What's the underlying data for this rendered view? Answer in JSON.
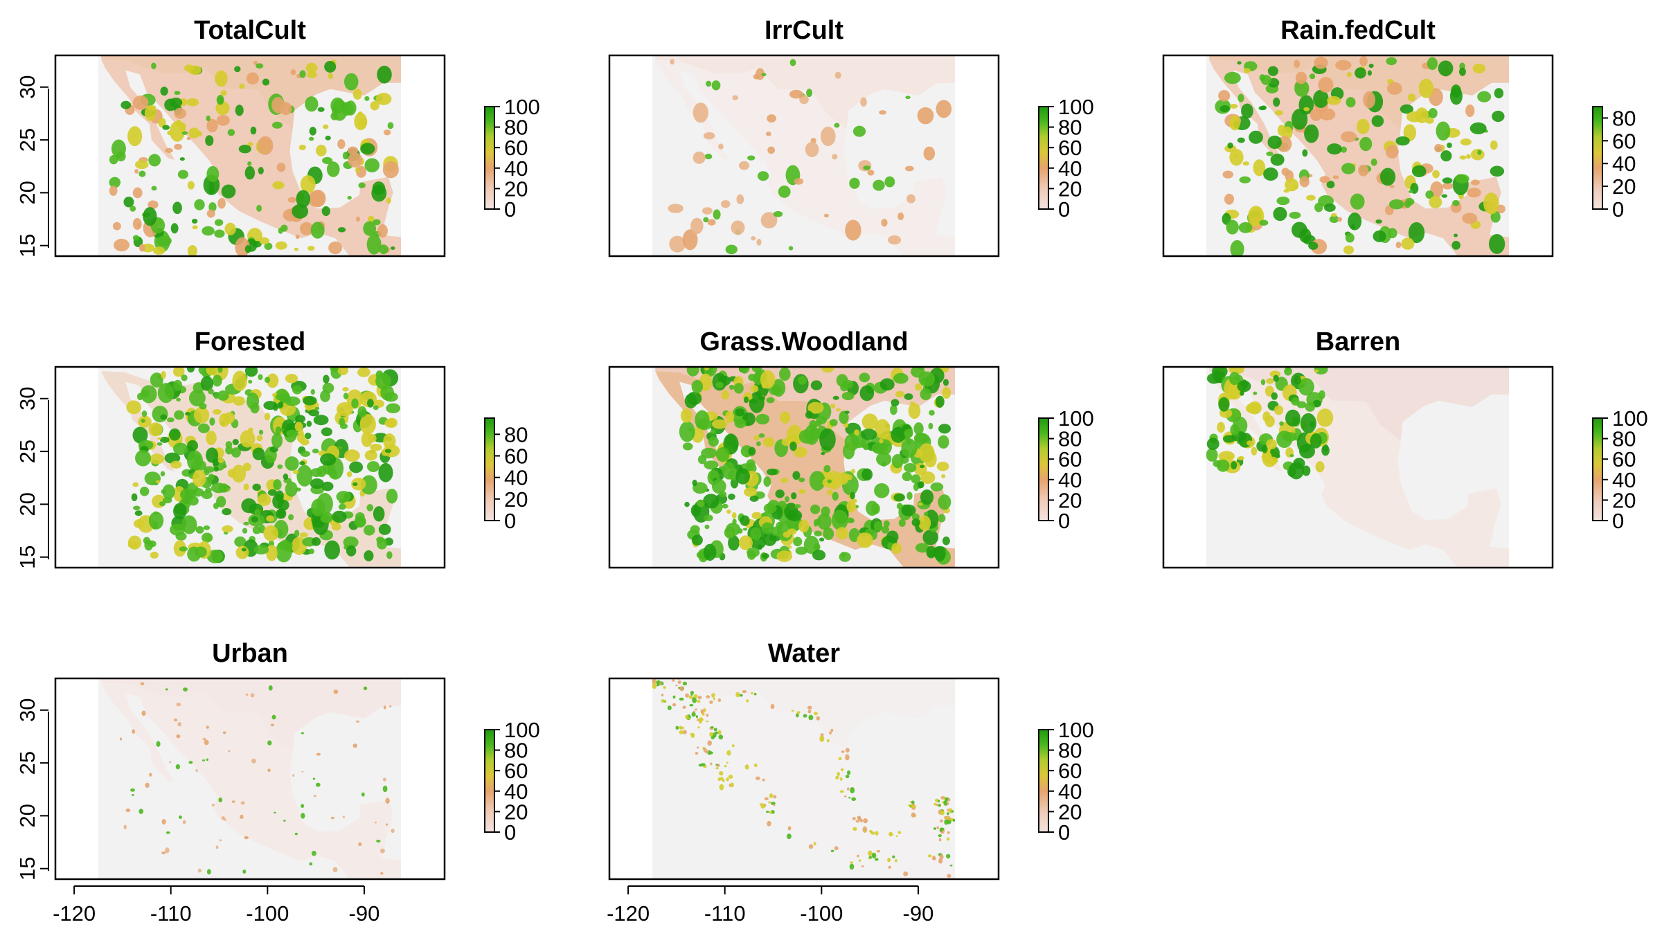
{
  "figure": {
    "panels": [
      {
        "title": "TotalCult",
        "legend_ticks": [
          "100",
          "80",
          "60",
          "40",
          "20",
          "0"
        ],
        "legend_max": 100,
        "land_style": "agri",
        "green_patches": "many"
      },
      {
        "title": "IrrCult",
        "legend_ticks": [
          "100",
          "80",
          "60",
          "40",
          "20",
          "0"
        ],
        "legend_max": 100,
        "land_style": "sparse",
        "green_patches": "few"
      },
      {
        "title": "Rain.fedCult",
        "legend_ticks": [
          "80",
          "60",
          "40",
          "20",
          "0"
        ],
        "legend_max": 90,
        "land_style": "agri",
        "green_patches": "many"
      },
      {
        "title": "Forested",
        "legend_ticks": [
          "80",
          "60",
          "40",
          "20",
          "0"
        ],
        "legend_max": 95,
        "land_style": "forest",
        "green_patches": "dense"
      },
      {
        "title": "Grass.Woodland",
        "legend_ticks": [
          "100",
          "80",
          "60",
          "40",
          "20",
          "0"
        ],
        "legend_max": 100,
        "land_style": "grass",
        "green_patches": "dense"
      },
      {
        "title": "Barren",
        "legend_ticks": [
          "100",
          "80",
          "60",
          "40",
          "20",
          "0"
        ],
        "legend_max": 100,
        "land_style": "barren",
        "green_patches": "northwest"
      },
      {
        "title": "Urban",
        "legend_ticks": [
          "100",
          "80",
          "60",
          "40",
          "20",
          "0"
        ],
        "legend_max": 100,
        "land_style": "faint",
        "green_patches": "dots"
      },
      {
        "title": "Water",
        "legend_ticks": [
          "100",
          "80",
          "60",
          "40",
          "20",
          "0"
        ],
        "legend_max": 100,
        "land_style": "coast",
        "green_patches": "coast"
      }
    ],
    "y_ticks": [
      "30",
      "25",
      "20",
      "15"
    ],
    "x_ticks": [
      "-120",
      "-110",
      "-100",
      "-90"
    ],
    "colors": {
      "background_na": "#f2f2f2",
      "low": "#f2d6cc",
      "mid": "#e8b48a",
      "tan": "#e6a46e",
      "yellow": "#d4cc2a",
      "green": "#4cb820",
      "dark_green": "#1f9a10"
    }
  }
}
